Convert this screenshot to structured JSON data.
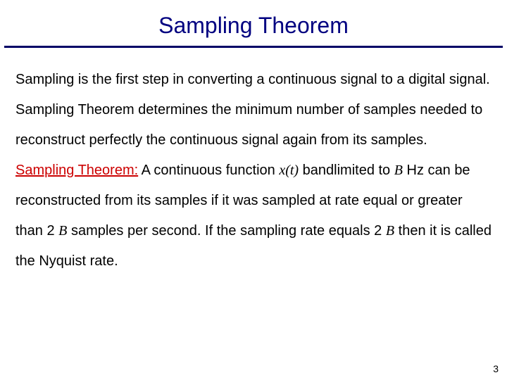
{
  "title": "Sampling Theorem",
  "rule_color": "#000066",
  "title_color": "#000080",
  "accent_color": "#cc0000",
  "body": {
    "p1": "Sampling is the first step in converting a continuous signal to a digital signal.",
    "p2": "Sampling Theorem determines the minimum number of samples needed to reconstruct perfectly the continuous signal again from its samples.",
    "p3_label": "Sampling Theorem:",
    "p3_a": " A continuous function ",
    "p3_xt": "x(t)",
    "p3_b": " bandlimited to ",
    "p3_B1": "B",
    "p3_c": " Hz can be reconstructed from its samples if it was sampled at rate equal or greater than 2 ",
    "p3_B2": "B",
    "p3_d": " samples per second. If the sampling rate equals 2 ",
    "p3_B3": "B",
    "p3_e": " then it is called the Nyquist rate."
  },
  "page_number": "3"
}
